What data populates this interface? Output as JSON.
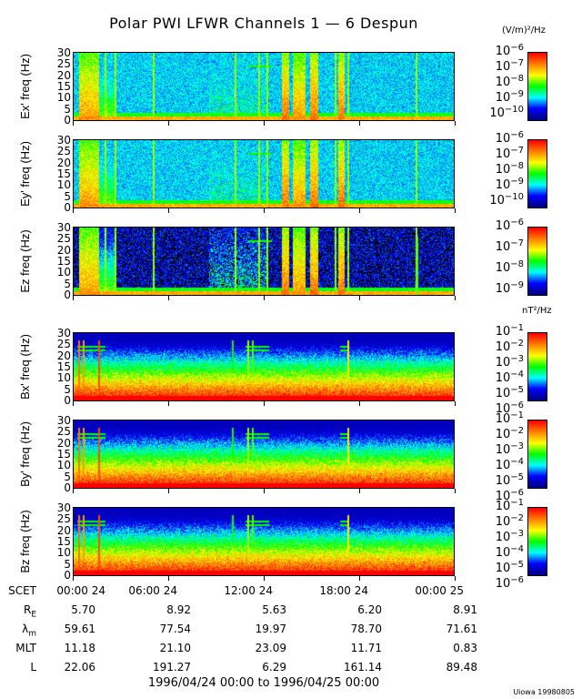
{
  "title": "Polar PWI LFWR Channels 1 — 6 Despun",
  "e_unit": "(V/m)²/Hz",
  "b_unit": "nT²/Hz",
  "credit": "Uiowa 19980805",
  "date_range": "1996/04/24 00:00 to 1996/04/25 00:00",
  "colormap": [
    "#000080",
    "#0000ff",
    "#00ffff",
    "#00ff00",
    "#ffff00",
    "#ff8000",
    "#ff0000"
  ],
  "chart_data": {
    "type": "heatmap",
    "x_range_hours": [
      0,
      24
    ],
    "y_range_hz": [
      0,
      30
    ],
    "y_ticks": [
      "0",
      "5",
      "10",
      "15",
      "20",
      "25",
      "30"
    ],
    "panels": [
      {
        "ylabel": "Ex' freq (Hz)",
        "kind": "E",
        "log_range": [
          -10.4,
          -6
        ],
        "cbar_ticks": [
          -6,
          -7,
          -8,
          -9,
          -10
        ]
      },
      {
        "ylabel": "Ey' freq (Hz)",
        "kind": "E",
        "log_range": [
          -10.4,
          -6
        ],
        "cbar_ticks": [
          -6,
          -7,
          -8,
          -9,
          -10
        ]
      },
      {
        "ylabel": "Ez freq (Hz)",
        "kind": "Ez",
        "log_range": [
          -9.2,
          -6
        ],
        "cbar_ticks": [
          -6,
          -7,
          -8,
          -9
        ]
      },
      {
        "ylabel": "Bx' freq (Hz)",
        "kind": "B",
        "log_range": [
          -6.3,
          -1
        ],
        "cbar_ticks": [
          -1,
          -2,
          -3,
          -4,
          -5,
          -6
        ]
      },
      {
        "ylabel": "By' freq (Hz)",
        "kind": "B",
        "log_range": [
          -6.3,
          -1
        ],
        "cbar_ticks": [
          -1,
          -2,
          -3,
          -4,
          -5,
          -6
        ]
      },
      {
        "ylabel": "Bz freq (Hz)",
        "kind": "B",
        "log_range": [
          -6.3,
          -1
        ],
        "cbar_ticks": [
          -1,
          -2,
          -3,
          -4,
          -5,
          -6
        ]
      }
    ]
  },
  "ephemeris": {
    "rows": [
      {
        "label": "SCET",
        "values": [
          "00:00 24",
          "06:00 24",
          "12:00 24",
          "18:00 24",
          "00:00 25"
        ]
      },
      {
        "label": "RE",
        "values": [
          "5.70",
          "8.92",
          "5.63",
          "6.20",
          "8.91"
        ]
      },
      {
        "label": "λm",
        "values": [
          "59.61",
          "77.54",
          "19.97",
          "78.70",
          "71.61"
        ]
      },
      {
        "label": "MLT",
        "values": [
          "11.18",
          "21.10",
          "23.09",
          "11.71",
          "0.83"
        ]
      },
      {
        "label": "L",
        "values": [
          "22.06",
          "191.27",
          "6.29",
          "161.14",
          "89.48"
        ]
      }
    ]
  }
}
